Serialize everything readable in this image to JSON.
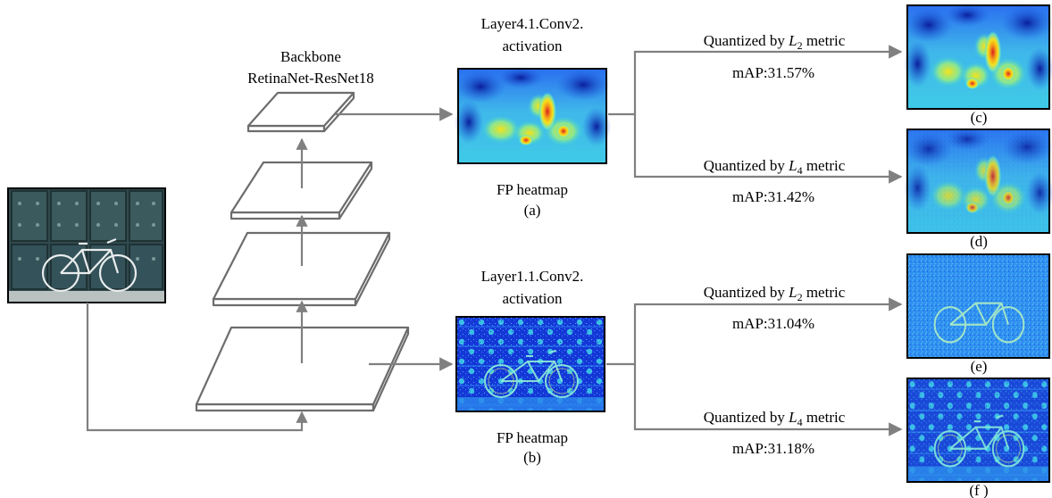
{
  "backbone": {
    "title_line1": "Backbone",
    "title_line2": "RetinaNet-ResNet18"
  },
  "branch_deep": {
    "layer_line1": "Layer4.1.Conv2.",
    "layer_line2": "activation",
    "caption": "FP heatmap",
    "tag": "(a)",
    "outputs": [
      {
        "quantized_prefix": "Quantized by ",
        "metric_letter": "L",
        "metric_sub": "2",
        "metric_word": " metric",
        "map": "mAP:31.57%",
        "tag": "(c)"
      },
      {
        "quantized_prefix": "Quantized by ",
        "metric_letter": "L",
        "metric_sub": "4",
        "metric_word": " metric",
        "map": "mAP:31.42%",
        "tag": "(d)"
      }
    ]
  },
  "branch_shallow": {
    "layer_line1": "Layer1.1.Conv2.",
    "layer_line2": "activation",
    "caption": "FP heatmap",
    "tag": "(b)",
    "outputs": [
      {
        "quantized_prefix": "Quantized by ",
        "metric_letter": "L",
        "metric_sub": "2",
        "metric_word": " metric",
        "map": "mAP:31.04%",
        "tag": "(e)"
      },
      {
        "quantized_prefix": "Quantized by ",
        "metric_letter": "L",
        "metric_sub": "4",
        "metric_word": " metric",
        "map": "mAP:31.18%",
        "tag": "(f )"
      }
    ]
  },
  "colors": {
    "arrow": "#808080",
    "layer_outline": "#6d6d6d",
    "heat_low": "#0a2bd6",
    "heat_mid": "#2fd0e8",
    "heat_high": "#f5e21a",
    "heat_peak": "#d81f1f",
    "photo_door": "#2f4a4e"
  }
}
